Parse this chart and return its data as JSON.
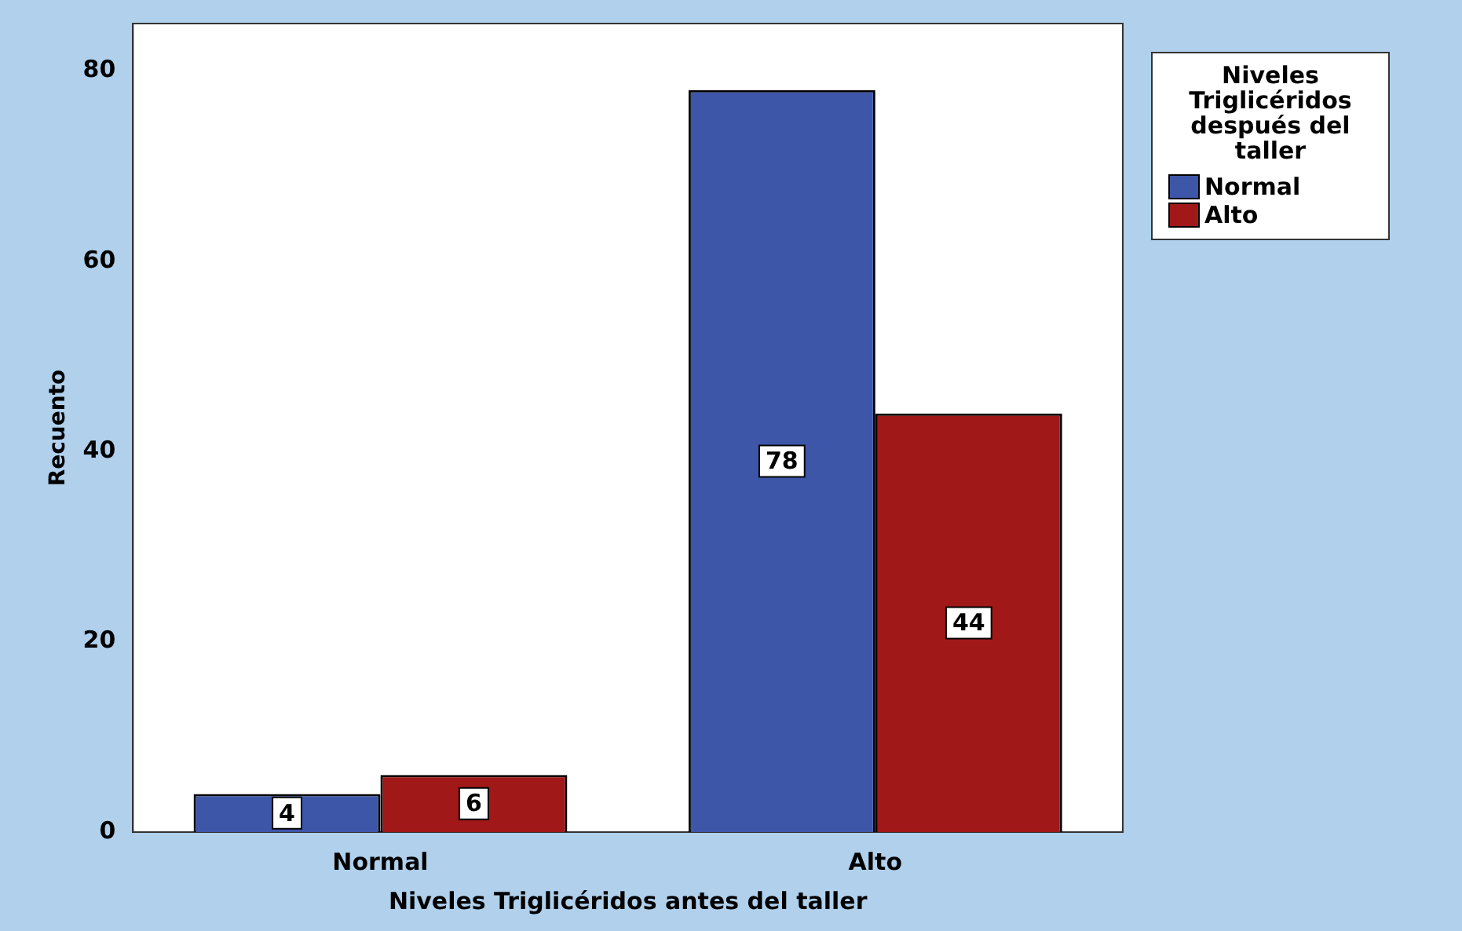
{
  "chart_data": {
    "type": "bar",
    "xlabel": "Niveles Triglicéridos antes del taller",
    "ylabel": "Recuento",
    "legend_title": "Niveles Triglicéridos después del taller",
    "categories": [
      "Normal",
      "Alto"
    ],
    "series": [
      {
        "name": "Normal",
        "color": "#3d56a8",
        "values": [
          4,
          78
        ]
      },
      {
        "name": "Alto",
        "color": "#a01818",
        "values": [
          6,
          44
        ]
      }
    ],
    "ylim": [
      0,
      85
    ],
    "yticks": [
      0,
      20,
      40,
      60,
      80
    ],
    "grid": false,
    "legend": "top right",
    "data_labels": true
  }
}
